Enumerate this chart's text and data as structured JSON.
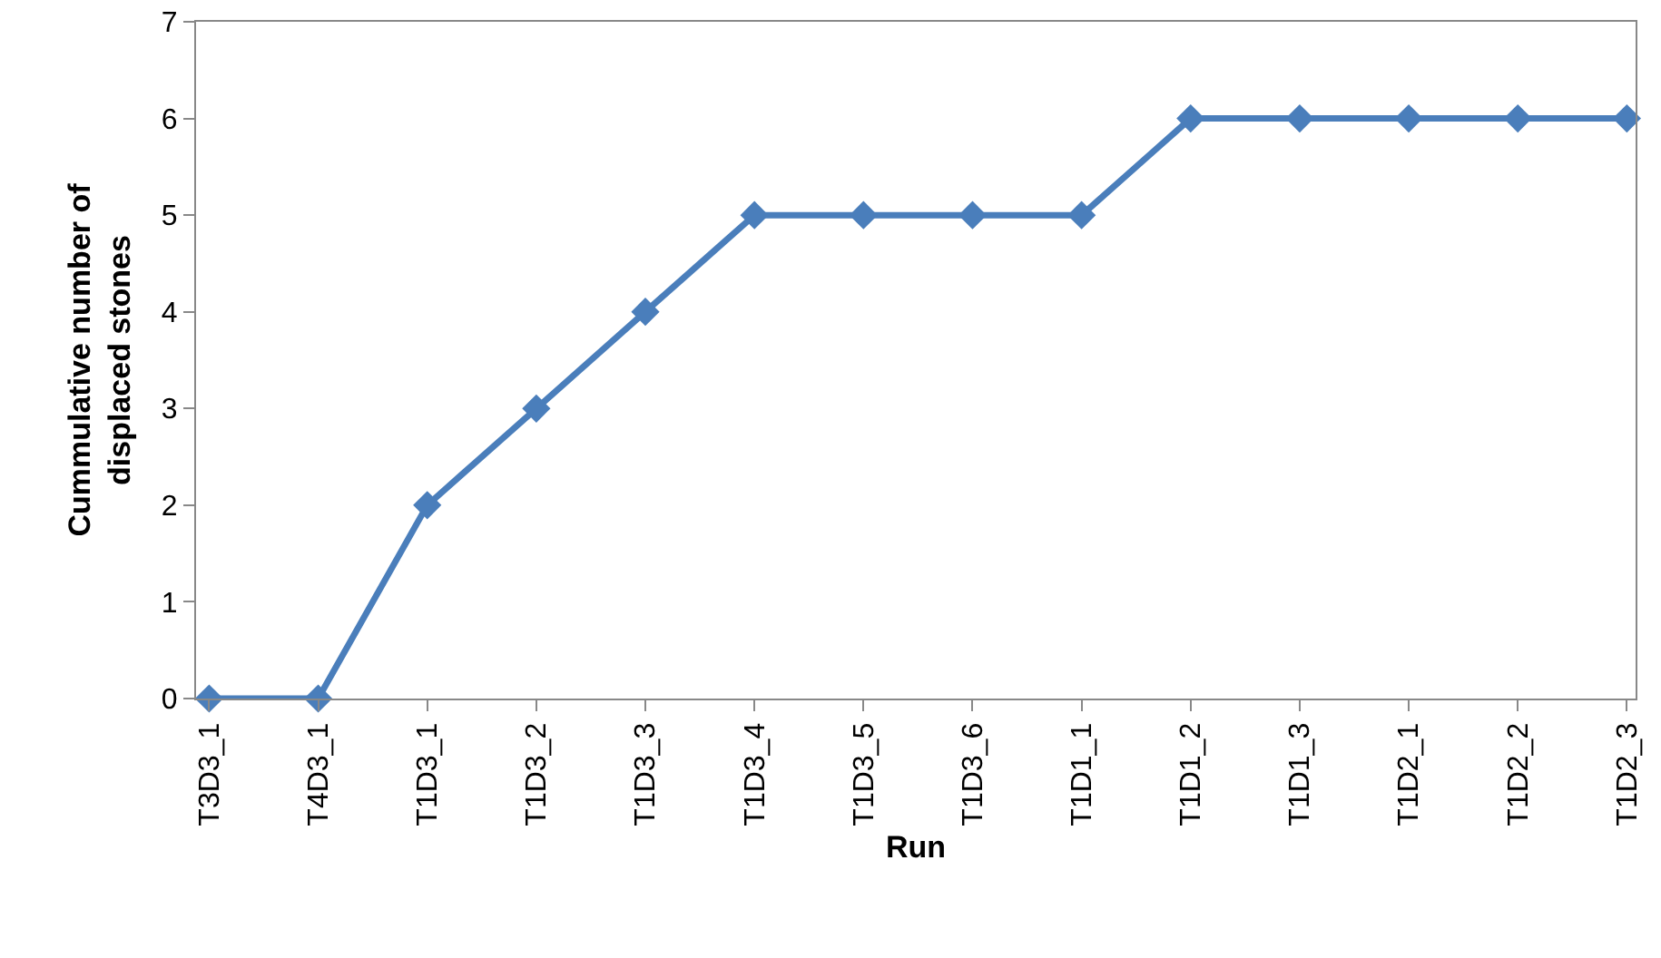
{
  "chart_data": {
    "type": "line",
    "xlabel": "Run",
    "ylabel": "Cummulative number of\ndisplaced stones",
    "categories": [
      "T3D3_1",
      "T4D3_1",
      "T1D3_1",
      "T1D3_2",
      "T1D3_3",
      "T1D3_4",
      "T1D3_5",
      "T1D3_6",
      "T1D1_1",
      "T1D1_2",
      "T1D1_3",
      "T1D2_1",
      "T1D2_2",
      "T1D2_3"
    ],
    "series": [
      {
        "color": "#4a7ebb",
        "values": [
          0,
          0,
          2,
          3,
          4,
          5,
          5,
          5,
          5,
          6,
          6,
          6,
          6,
          6
        ]
      }
    ],
    "ylim": [
      0,
      7
    ],
    "yticks": [
      0,
      1,
      2,
      3,
      4,
      5,
      6,
      7
    ],
    "marker": "diamond",
    "line_style": "solid"
  }
}
